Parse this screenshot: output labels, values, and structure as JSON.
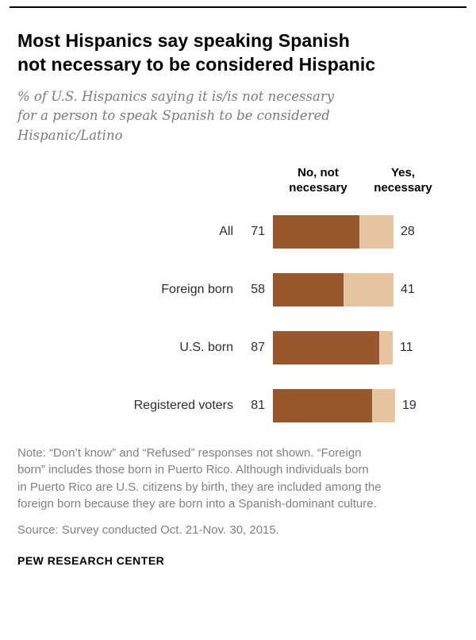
{
  "header": {
    "title_lines": [
      "Most Hispanics say speaking Spanish",
      "not necessary to be considered Hispanic"
    ],
    "subtitle_lines": [
      "% of U.S. Hispanics saying it is/is not necessary",
      "for a person to speak Spanish to be considered",
      "Hispanic/Latino"
    ]
  },
  "chart_data": {
    "type": "bar",
    "orientation": "horizontal",
    "stacked": true,
    "title": "Most Hispanics say speaking Spanish not necessary to be considered Hispanic",
    "subtitle": "% of U.S. Hispanics saying it is/is not necessary for a person to speak Spanish to be considered Hispanic/Latino",
    "categories": [
      "All",
      "Foreign born",
      "U.S. born",
      "Registered voters"
    ],
    "series": [
      {
        "name": "No, not necessary",
        "color": "#99582B",
        "values": [
          71,
          58,
          87,
          81
        ]
      },
      {
        "name": "Yes, necessary",
        "color": "#E5C5A1",
        "values": [
          28,
          41,
          11,
          19
        ]
      }
    ],
    "column_headers": [
      "No, not necessary",
      "Yes, necessary"
    ],
    "value_labels": "shown at ends of bars",
    "xlim": [
      0,
      100
    ],
    "grid": false,
    "legend_position": "column headers above bars"
  },
  "footer": {
    "note_lines": [
      "Note: “Don’t know” and “Refused” responses not shown. “Foreign",
      "born” includes those born in Puerto Rico. Although individuals born",
      "in Puerto Rico are U.S. citizens by birth, they are included among the",
      "foreign born because they are born into a Spanish-dominant culture."
    ],
    "source": "Source: Survey conducted Oct. 21-Nov. 30, 2015.",
    "brand": "PEW RESEARCH CENTER"
  }
}
